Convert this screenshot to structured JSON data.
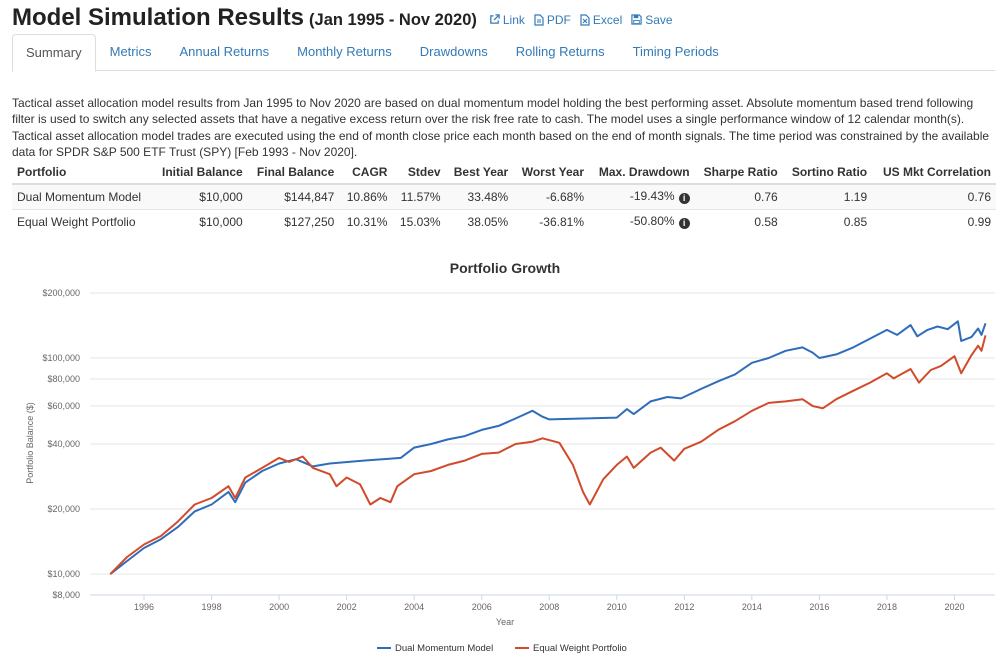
{
  "header": {
    "title": "Model Simulation Results",
    "range": "(Jan 1995 - Nov 2020)",
    "actions": [
      {
        "label": "Link",
        "icon": "external-link-icon"
      },
      {
        "label": "PDF",
        "icon": "pdf-icon"
      },
      {
        "label": "Excel",
        "icon": "excel-icon"
      },
      {
        "label": "Save",
        "icon": "save-icon"
      }
    ]
  },
  "tabs": [
    "Summary",
    "Metrics",
    "Annual Returns",
    "Monthly Returns",
    "Drawdowns",
    "Rolling Returns",
    "Timing Periods"
  ],
  "description": "Tactical asset allocation model results from Jan 1995 to Nov 2020 are based on dual momentum model holding the best performing asset. Absolute momentum based trend following filter is used to switch any selected assets that have a negative excess return over the risk free rate to cash. The model uses a single performance window of 12 calendar month(s). Tactical asset allocation model trades are executed using the end of month close price each month based on the end of month signals. The time period was constrained by the available data for SPDR S&P 500 ETF Trust (SPY) [Feb 1993 - Nov 2020].",
  "table": {
    "headers": [
      "Portfolio",
      "Initial Balance",
      "Final Balance",
      "CAGR",
      "Stdev",
      "Best Year",
      "Worst Year",
      "Max. Drawdown",
      "Sharpe Ratio",
      "Sortino Ratio",
      "US Mkt Correlation"
    ],
    "rows": [
      [
        "Dual Momentum Model",
        "$10,000",
        "$144,847",
        "10.86%",
        "11.57%",
        "33.48%",
        "-6.68%",
        "-19.43%",
        "0.76",
        "1.19",
        "0.76"
      ],
      [
        "Equal Weight Portfolio",
        "$10,000",
        "$127,250",
        "10.31%",
        "15.03%",
        "38.05%",
        "-36.81%",
        "-50.80%",
        "0.58",
        "0.85",
        "0.99"
      ]
    ]
  },
  "chart_data": {
    "type": "line",
    "title": "Portfolio Growth",
    "xlabel": "Year",
    "ylabel": "Portfolio Balance ($)",
    "yscale": "log",
    "ylim": [
      8000,
      200000
    ],
    "xlim": [
      1994.4,
      2021.2
    ],
    "yticks": [
      {
        "value": 200000,
        "label": "$200,000"
      },
      {
        "value": 100000,
        "label": "$100,000"
      },
      {
        "value": 80000,
        "label": "$80,000"
      },
      {
        "value": 60000,
        "label": "$60,000"
      },
      {
        "value": 40000,
        "label": "$40,000"
      },
      {
        "value": 20000,
        "label": "$20,000"
      },
      {
        "value": 10000,
        "label": "$10,000"
      },
      {
        "value": 8000,
        "label": "$8,000"
      }
    ],
    "xticks": [
      "1996",
      "1998",
      "2000",
      "2002",
      "2004",
      "2006",
      "2008",
      "2010",
      "2012",
      "2014",
      "2016",
      "2018",
      "2020"
    ],
    "series": [
      {
        "name": "Dual Momentum Model",
        "color": "#2f6dbb",
        "points": [
          [
            1995.0,
            10000
          ],
          [
            1995.5,
            11500
          ],
          [
            1996.0,
            13200
          ],
          [
            1996.5,
            14500
          ],
          [
            1997.0,
            16500
          ],
          [
            1997.5,
            19500
          ],
          [
            1998.0,
            21000
          ],
          [
            1998.5,
            24000
          ],
          [
            1998.7,
            21500
          ],
          [
            1999.0,
            26500
          ],
          [
            1999.5,
            30000
          ],
          [
            2000.0,
            32500
          ],
          [
            2000.5,
            34000
          ],
          [
            2001.0,
            31500
          ],
          [
            2001.5,
            32500
          ],
          [
            2002.5,
            33500
          ],
          [
            2003.6,
            34500
          ],
          [
            2004.0,
            38500
          ],
          [
            2004.5,
            40000
          ],
          [
            2005.0,
            42000
          ],
          [
            2005.5,
            43500
          ],
          [
            2006.0,
            46500
          ],
          [
            2006.5,
            48500
          ],
          [
            2007.0,
            52500
          ],
          [
            2007.5,
            57000
          ],
          [
            2007.8,
            53500
          ],
          [
            2008.0,
            52000
          ],
          [
            2009.0,
            52500
          ],
          [
            2010.0,
            53000
          ],
          [
            2010.3,
            58000
          ],
          [
            2010.5,
            55000
          ],
          [
            2011.0,
            63000
          ],
          [
            2011.5,
            66000
          ],
          [
            2011.9,
            65000
          ],
          [
            2012.5,
            72000
          ],
          [
            2013.0,
            78000
          ],
          [
            2013.5,
            84000
          ],
          [
            2014.0,
            95000
          ],
          [
            2014.5,
            100000
          ],
          [
            2015.0,
            108000
          ],
          [
            2015.5,
            112000
          ],
          [
            2015.8,
            106000
          ],
          [
            2016.0,
            100000
          ],
          [
            2016.5,
            104000
          ],
          [
            2017.0,
            112000
          ],
          [
            2017.5,
            123000
          ],
          [
            2018.0,
            135000
          ],
          [
            2018.3,
            128000
          ],
          [
            2018.7,
            142000
          ],
          [
            2018.9,
            126000
          ],
          [
            2019.2,
            135000
          ],
          [
            2019.5,
            140000
          ],
          [
            2019.8,
            136000
          ],
          [
            2020.1,
            148000
          ],
          [
            2020.2,
            120000
          ],
          [
            2020.5,
            125000
          ],
          [
            2020.7,
            137000
          ],
          [
            2020.8,
            128000
          ],
          [
            2020.92,
            144847
          ]
        ]
      },
      {
        "name": "Equal Weight Portfolio",
        "color": "#d14b2a",
        "points": [
          [
            1995.0,
            10000
          ],
          [
            1995.5,
            12000
          ],
          [
            1996.0,
            13700
          ],
          [
            1996.5,
            15000
          ],
          [
            1997.0,
            17500
          ],
          [
            1997.5,
            21000
          ],
          [
            1998.0,
            22500
          ],
          [
            1998.5,
            25500
          ],
          [
            1998.7,
            22500
          ],
          [
            1999.0,
            28000
          ],
          [
            1999.5,
            31000
          ],
          [
            2000.0,
            34500
          ],
          [
            2000.3,
            33000
          ],
          [
            2000.7,
            35000
          ],
          [
            2001.0,
            31000
          ],
          [
            2001.5,
            29000
          ],
          [
            2001.7,
            25500
          ],
          [
            2002.0,
            28000
          ],
          [
            2002.4,
            26000
          ],
          [
            2002.7,
            21000
          ],
          [
            2003.0,
            22500
          ],
          [
            2003.3,
            21500
          ],
          [
            2003.5,
            25500
          ],
          [
            2004.0,
            29000
          ],
          [
            2004.5,
            30000
          ],
          [
            2005.0,
            32000
          ],
          [
            2005.5,
            33500
          ],
          [
            2006.0,
            36000
          ],
          [
            2006.5,
            36500
          ],
          [
            2007.0,
            40000
          ],
          [
            2007.5,
            41000
          ],
          [
            2007.8,
            42500
          ],
          [
            2008.3,
            40500
          ],
          [
            2008.7,
            32000
          ],
          [
            2009.0,
            24000
          ],
          [
            2009.2,
            21000
          ],
          [
            2009.6,
            27500
          ],
          [
            2010.0,
            32000
          ],
          [
            2010.3,
            35000
          ],
          [
            2010.5,
            31000
          ],
          [
            2011.0,
            36500
          ],
          [
            2011.3,
            38500
          ],
          [
            2011.7,
            33500
          ],
          [
            2012.0,
            38000
          ],
          [
            2012.5,
            41000
          ],
          [
            2013.0,
            46500
          ],
          [
            2013.5,
            51000
          ],
          [
            2014.0,
            57000
          ],
          [
            2014.5,
            62000
          ],
          [
            2015.0,
            63000
          ],
          [
            2015.5,
            64500
          ],
          [
            2015.8,
            60000
          ],
          [
            2016.1,
            58500
          ],
          [
            2016.5,
            64500
          ],
          [
            2017.0,
            70500
          ],
          [
            2017.5,
            77000
          ],
          [
            2018.0,
            85000
          ],
          [
            2018.2,
            80500
          ],
          [
            2018.7,
            89000
          ],
          [
            2018.95,
            77000
          ],
          [
            2019.3,
            88000
          ],
          [
            2019.6,
            92000
          ],
          [
            2020.0,
            102000
          ],
          [
            2020.2,
            85000
          ],
          [
            2020.5,
            103000
          ],
          [
            2020.7,
            114000
          ],
          [
            2020.8,
            108000
          ],
          [
            2020.92,
            127250
          ]
        ]
      }
    ]
  }
}
